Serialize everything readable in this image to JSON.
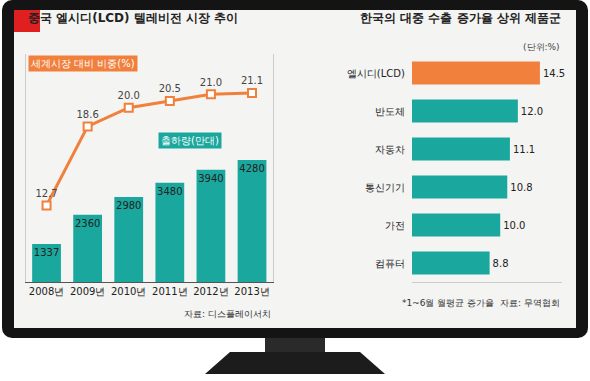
{
  "chart_data": [
    {
      "type": "bar",
      "title": "중국 엘시디(LCD) 텔레비전 시장 추이",
      "categories": [
        "2008년",
        "2009년",
        "2010년",
        "2011년",
        "2012년",
        "2013년"
      ],
      "series": [
        {
          "name": "세계시장 대비 비중(%)",
          "type": "line",
          "axis": "y2",
          "color": "#f0803c",
          "marker": "square",
          "values": [
            12.7,
            18.6,
            20.0,
            20.5,
            21.0,
            21.1
          ],
          "value_labels": [
            "12.7",
            "18.6",
            "20.0",
            "20.5",
            "21.0",
            "21.1"
          ]
        },
        {
          "name": "출하량(만대)",
          "type": "bar",
          "color": "#1aa79d",
          "values": [
            1337,
            2360,
            2980,
            3480,
            3940,
            4280
          ]
        }
      ],
      "ylim": [
        0,
        8000
      ],
      "y2lim": [
        7,
        24
      ],
      "data_labels": true,
      "tick_labels": "x",
      "grid": false,
      "annotations": [
        "자료: 디스플레이서치"
      ]
    },
    {
      "type": "bar",
      "orientation": "horizontal",
      "title": "한국의 대중 수출 증가율 상위 제품군",
      "subtitle": "(단위:%)",
      "categories": [
        "엘시디(LCD)",
        "반도체",
        "자동차",
        "통신기기",
        "가전",
        "컴퓨터"
      ],
      "values": [
        14.5,
        12.0,
        11.1,
        10.8,
        10.0,
        8.8
      ],
      "value_labels": [
        "14.5",
        "12.0",
        "11.1",
        "10.8",
        "10.0",
        "8.8"
      ],
      "colors": [
        "#f0803c",
        "#1aa79d",
        "#1aa79d",
        "#1aa79d",
        "#1aa79d",
        "#1aa79d"
      ],
      "xlim": [
        0,
        17
      ],
      "data_labels": true,
      "tick_labels": "y",
      "grid": false,
      "annotations": [
        "*1~6월 월평균 증가율  자료: 무역협회"
      ]
    }
  ]
}
